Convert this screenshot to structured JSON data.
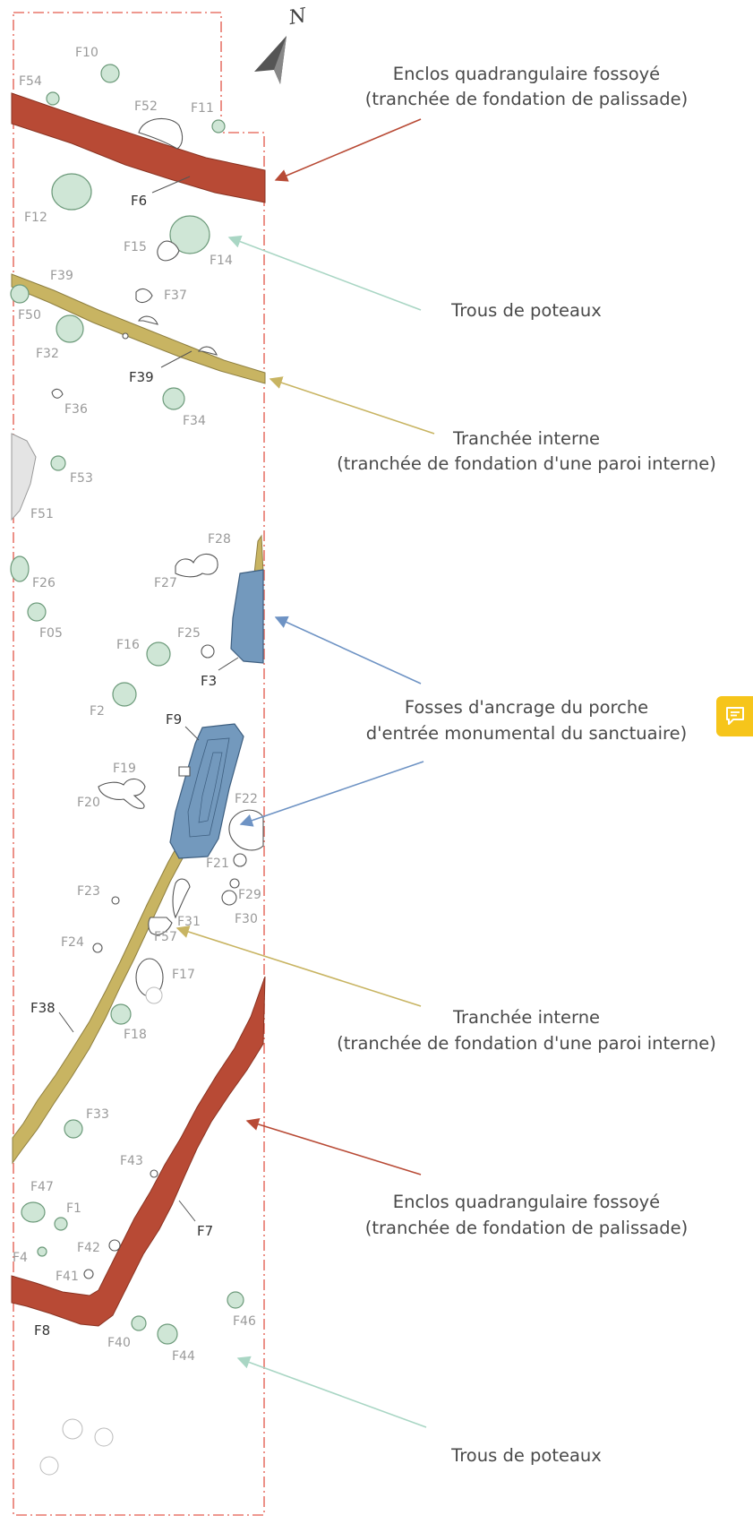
{
  "compass": {
    "label": "N"
  },
  "features": {
    "F10": "F10",
    "F54": "F54",
    "F52": "F52",
    "F11": "F11",
    "F6": "F6",
    "F12": "F12",
    "F15": "F15",
    "F14": "F14",
    "F39a": "F39",
    "F37": "F37",
    "F50": "F50",
    "F32": "F32",
    "F39b": "F39",
    "F36": "F36",
    "F34": "F34",
    "F53": "F53",
    "F51": "F51",
    "F28": "F28",
    "F27": "F27",
    "F26": "F26",
    "F05": "F05",
    "F16": "F16",
    "F25": "F25",
    "F3": "F3",
    "F2": "F2",
    "F9": "F9",
    "F19": "F19",
    "F20": "F20",
    "F22": "F22",
    "F21": "F21",
    "F23": "F23",
    "F29": "F29",
    "F30": "F30",
    "F31": "F31",
    "F57": "F57",
    "F24": "F24",
    "F17": "F17",
    "F38": "F38",
    "F18": "F18",
    "F33": "F33",
    "F43": "F43",
    "F47": "F47",
    "F1": "F1",
    "F7": "F7",
    "F42": "F42",
    "F4": "F4",
    "F41": "F41",
    "F8": "F8",
    "F40": "F40",
    "F46": "F46",
    "F44": "F44"
  },
  "annotations": {
    "enclos_top": {
      "line1": "Enclos quadrangulaire fossoyé",
      "line2": "(tranchée de fondation de palissade)"
    },
    "trous_top": {
      "line1": "Trous de poteaux"
    },
    "tranchee_top": {
      "line1": "Tranchée interne",
      "line2": "(tranchée de fondation d'une paroi interne)"
    },
    "fosses": {
      "line1": "Fosses d'ancrage du porche",
      "line2": "d'entrée monumental du sanctuaire)"
    },
    "tranchee_bottom": {
      "line1": "Tranchée interne",
      "line2": "(tranchée de fondation d'une paroi interne)"
    },
    "enclos_bottom": {
      "line1": "Enclos quadrangulaire fossoyé",
      "line2": "(tranchée de fondation de palissade)"
    },
    "trous_bottom": {
      "line1": "Trous de poteaux"
    }
  },
  "colors": {
    "palisade_trench": "#b84a35",
    "internal_trench": "#c8b462",
    "porch_pits": "#7399bd",
    "post_holes": "#cfe6d6",
    "excavation_limit": "#e8766a",
    "comment_button": "#f6c51b"
  },
  "comment_button": {
    "icon": "comment-icon"
  }
}
